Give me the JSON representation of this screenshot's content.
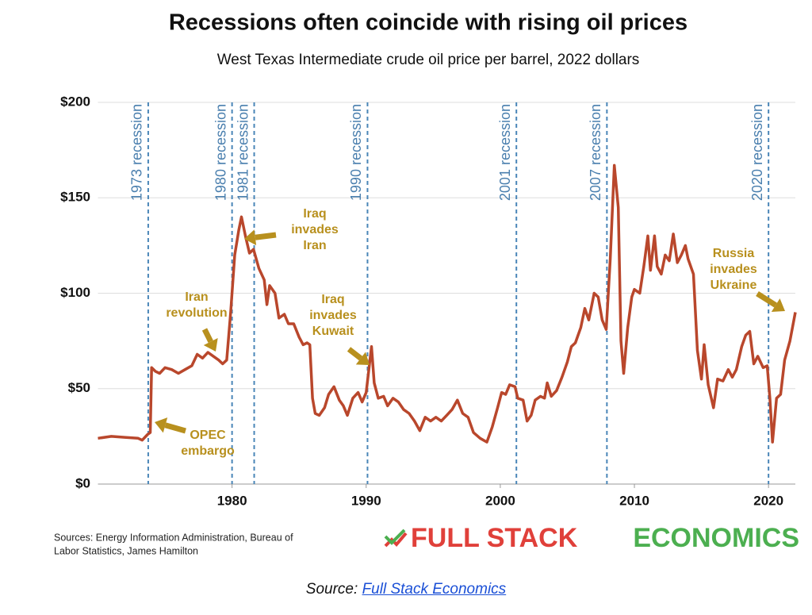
{
  "chart_data": {
    "type": "line",
    "title": "Recessions often coincide with rising oil prices",
    "subtitle": "West Texas Intermediate crude oil price per barrel, 2022 dollars",
    "xlim": [
      1970,
      2022
    ],
    "xticks": [
      1980,
      1990,
      2000,
      2010,
      2020
    ],
    "ylim": [
      0,
      200
    ],
    "yticks": [
      {
        "value": 0,
        "label": "$0"
      },
      {
        "value": 50,
        "label": "$50"
      },
      {
        "value": 100,
        "label": "$100"
      },
      {
        "value": 150,
        "label": "$150"
      },
      {
        "value": 200,
        "label": "$200"
      }
    ],
    "grid": true,
    "series": [
      {
        "name": "WTI",
        "color": "#b9472c",
        "x": [
          1970,
          1971,
          1972,
          1973,
          1973.3,
          1973.7,
          1973.9,
          1974,
          1974.3,
          1974.6,
          1975,
          1975.5,
          1976,
          1976.5,
          1977,
          1977.4,
          1977.8,
          1978.2,
          1978.6,
          1979,
          1979.3,
          1979.6,
          1979.9,
          1980.2,
          1980.5,
          1980.7,
          1981,
          1981.3,
          1981.6,
          1982,
          1982.4,
          1982.6,
          1982.8,
          1983.2,
          1983.5,
          1983.9,
          1984.2,
          1984.6,
          1985,
          1985.3,
          1985.6,
          1985.8,
          1986,
          1986.2,
          1986.5,
          1986.9,
          1987.2,
          1987.6,
          1988,
          1988.3,
          1988.6,
          1989,
          1989.4,
          1989.7,
          1990,
          1990.4,
          1990.6,
          1990.9,
          1991.3,
          1991.6,
          1992,
          1992.4,
          1992.8,
          1993.2,
          1993.6,
          1994,
          1994.4,
          1994.8,
          1995.2,
          1995.6,
          1996,
          1996.4,
          1996.8,
          1997.2,
          1997.6,
          1998,
          1998.5,
          1999,
          1999.4,
          1999.8,
          2000.1,
          2000.4,
          2000.7,
          2001.1,
          2001.3,
          2001.7,
          2002,
          2002.3,
          2002.6,
          2003,
          2003.3,
          2003.5,
          2003.8,
          2004.2,
          2004.6,
          2005,
          2005.3,
          2005.6,
          2006,
          2006.3,
          2006.6,
          2007,
          2007.3,
          2007.6,
          2007.9,
          2008.2,
          2008.5,
          2008.8,
          2009,
          2009.2,
          2009.5,
          2009.8,
          2010,
          2010.4,
          2010.7,
          2011,
          2011.2,
          2011.5,
          2011.7,
          2012,
          2012.3,
          2012.6,
          2012.9,
          2013.2,
          2013.5,
          2013.8,
          2014,
          2014.4,
          2014.7,
          2015,
          2015.2,
          2015.5,
          2015.9,
          2016.2,
          2016.6,
          2017,
          2017.3,
          2017.6,
          2018,
          2018.3,
          2018.6,
          2018.9,
          2019.2,
          2019.6,
          2019.9,
          2020.1,
          2020.3,
          2020.6,
          2020.9,
          2021.2,
          2021.6,
          2022
        ],
        "values": [
          24,
          25,
          24.5,
          24,
          23,
          26,
          27,
          61,
          59,
          58,
          61,
          60,
          58,
          60,
          62,
          68,
          66,
          69,
          67,
          65,
          63,
          65,
          90,
          120,
          133,
          140,
          130,
          121,
          123,
          113,
          107,
          94,
          104,
          100,
          87,
          89,
          84,
          84,
          77,
          73,
          74,
          73,
          45,
          37,
          36,
          40,
          47,
          51,
          44,
          41,
          36,
          45,
          48,
          43,
          48,
          72,
          53,
          45,
          46,
          41,
          45,
          43,
          39,
          37,
          33,
          28,
          35,
          33,
          35,
          33,
          36,
          39,
          44,
          37,
          35,
          27,
          24,
          22,
          30,
          40,
          48,
          47,
          52,
          51,
          45,
          44,
          33,
          36,
          44,
          46,
          45,
          53,
          46,
          49,
          56,
          64,
          72,
          74,
          82,
          92,
          86,
          100,
          98,
          86,
          81,
          118,
          167,
          145,
          75,
          58,
          82,
          98,
          102,
          100,
          114,
          130,
          112,
          130,
          114,
          110,
          120,
          117,
          131,
          116,
          120,
          125,
          118,
          110,
          70,
          55,
          73,
          52,
          40,
          55,
          54,
          60,
          56,
          60,
          72,
          78,
          80,
          63,
          67,
          61,
          62,
          45,
          22,
          45,
          47,
          65,
          75,
          90
        ]
      }
    ],
    "recessions": [
      {
        "x": 1973.75,
        "label": "1973 recession"
      },
      {
        "x": 1980.0,
        "label": "1980 recession"
      },
      {
        "x": 1981.65,
        "label": "1981 recession"
      },
      {
        "x": 1990.1,
        "label": "1990 recession"
      },
      {
        "x": 2001.2,
        "label": "2001 recession"
      },
      {
        "x": 2007.95,
        "label": "2007 recession"
      },
      {
        "x": 2020.0,
        "label": "2020 recession"
      }
    ],
    "annotations": [
      {
        "lines": [
          "Iran",
          "revolution"
        ]
      },
      {
        "lines": [
          "Iraq",
          "invades",
          "Iran"
        ]
      },
      {
        "lines": [
          "Iraq",
          "invades",
          "Kuwait"
        ]
      },
      {
        "lines": [
          "OPEC",
          "embargo"
        ]
      },
      {
        "lines": [
          "Russia",
          "invades",
          "Ukraine"
        ]
      }
    ],
    "sources": [
      "Sources: Energy Information Administration, Bureau of",
      "Labor Statistics, James Hamilton"
    ],
    "logo": [
      "FULL STACK",
      "ECONOMICS"
    ],
    "source_prefix": "Source:",
    "source_link": "Full Stack Economics"
  }
}
